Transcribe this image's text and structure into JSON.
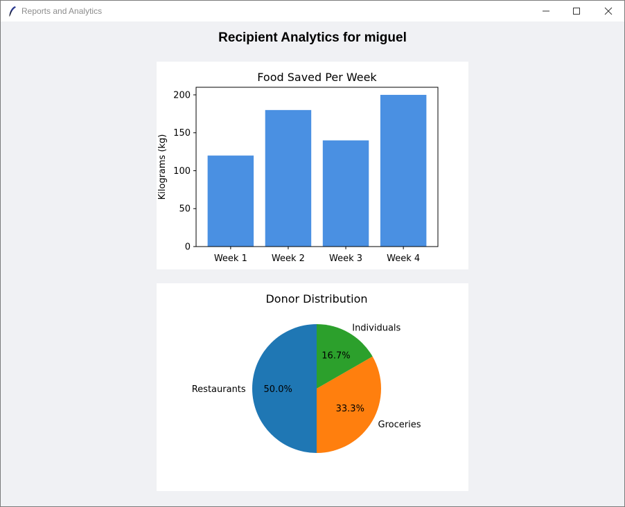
{
  "window": {
    "title": "Reports and Analytics",
    "icon": "feather-icon",
    "controls": [
      "minimize-icon",
      "maximize-icon",
      "close-icon"
    ]
  },
  "page": {
    "heading": "Recipient Analytics for miguel"
  },
  "chart_data": [
    {
      "type": "bar",
      "title": "Food Saved Per Week",
      "categories": [
        "Week 1",
        "Week 2",
        "Week 3",
        "Week 4"
      ],
      "values": [
        120,
        180,
        140,
        200
      ],
      "xlabel": "",
      "ylabel": "Kilograms (kg)",
      "ylim": [
        0,
        210
      ],
      "yticks": [
        0,
        50,
        100,
        150,
        200
      ],
      "color": "#4a90e2",
      "grid": false
    },
    {
      "type": "pie",
      "title": "Donor Distribution",
      "labels": [
        "Restaurants",
        "Groceries",
        "Individuals"
      ],
      "values": [
        50.0,
        33.3,
        16.7
      ],
      "autopct": [
        "50.0%",
        "33.3%",
        "16.7%"
      ],
      "colors": [
        "#1f77b4",
        "#ff7f0e",
        "#2ca02c"
      ],
      "start_angle": 90
    }
  ]
}
